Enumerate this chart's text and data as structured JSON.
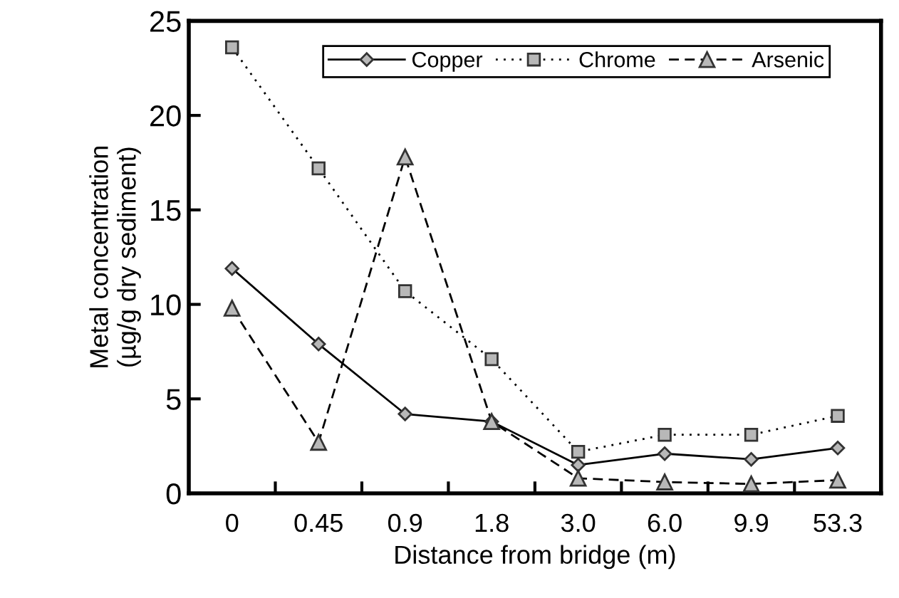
{
  "chart_data": {
    "type": "line",
    "xlabel": "Distance from bridge (m)",
    "ylabel": "Metal concentration\n(µg/g dry sediment)",
    "categories": [
      "0",
      "0.45",
      "0.9",
      "1.8",
      "3.0",
      "6.0",
      "9.9",
      "53.3"
    ],
    "ylim": [
      0,
      25
    ],
    "yticks": [
      0,
      5,
      10,
      15,
      20,
      25
    ],
    "grid": false,
    "legend": "top",
    "series": [
      {
        "name": "Copper",
        "color": "#000000",
        "marker": "diamond",
        "line_style": "solid",
        "values": [
          11.9,
          7.9,
          4.2,
          3.8,
          1.5,
          2.1,
          1.8,
          2.4
        ]
      },
      {
        "name": "Chrome",
        "color": "#000000",
        "marker": "square",
        "line_style": "dotted",
        "values": [
          23.6,
          17.2,
          10.7,
          7.1,
          2.2,
          3.1,
          3.1,
          4.1
        ]
      },
      {
        "name": "Arsenic",
        "color": "#000000",
        "marker": "triangle",
        "line_style": "dashed",
        "values": [
          9.8,
          2.7,
          17.8,
          3.8,
          0.8,
          0.6,
          0.5,
          0.7
        ]
      }
    ]
  }
}
